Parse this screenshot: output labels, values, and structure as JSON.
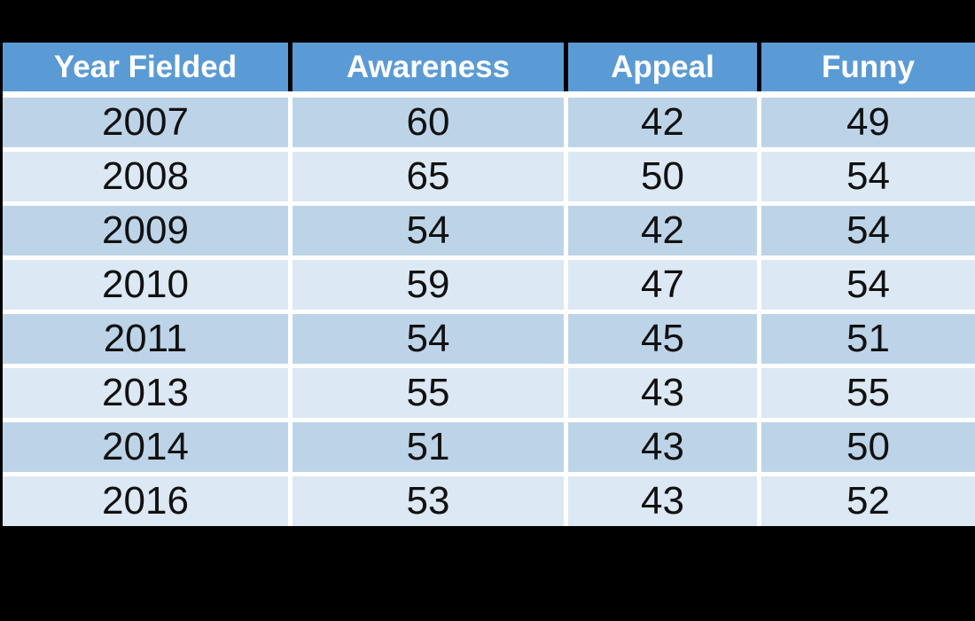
{
  "chart_data": {
    "type": "table",
    "columns": [
      "Year Fielded",
      "Awareness",
      "Appeal",
      "Funny"
    ],
    "rows": [
      [
        2007,
        60,
        42,
        49
      ],
      [
        2008,
        65,
        50,
        54
      ],
      [
        2009,
        54,
        42,
        54
      ],
      [
        2010,
        59,
        47,
        54
      ],
      [
        2011,
        54,
        45,
        51
      ],
      [
        2013,
        55,
        43,
        55
      ],
      [
        2014,
        51,
        43,
        50
      ],
      [
        2016,
        53,
        43,
        52
      ]
    ]
  },
  "colors": {
    "page_bg": "#000000",
    "header_bg": "#5b9bd5",
    "header_text": "#ffffff",
    "row_odd_bg": "#bdd4e8",
    "row_even_bg": "#dce8f3",
    "separator": "#ffffff",
    "body_text": "#111111"
  }
}
